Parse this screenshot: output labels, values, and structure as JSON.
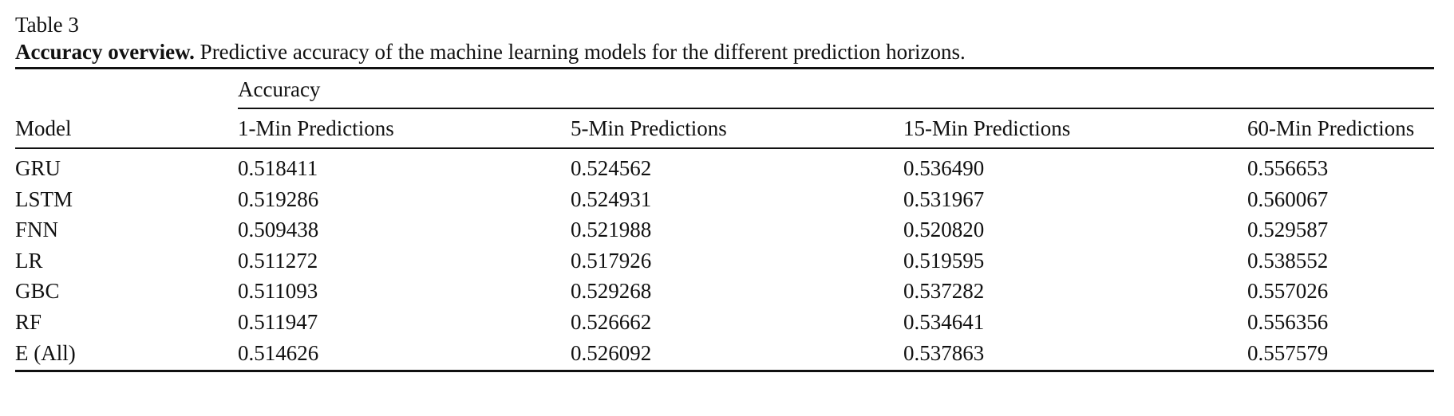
{
  "table": {
    "label": "Table 3",
    "caption_title": "Accuracy overview.",
    "caption_text": " Predictive accuracy of the machine learning models for the different prediction horizons.",
    "group_header": "Accuracy",
    "columns": [
      "Model",
      "1-Min Predictions",
      "5-Min Predictions",
      "15-Min Predictions",
      "60-Min Predictions"
    ],
    "rows": [
      [
        "GRU",
        "0.518411",
        "0.524562",
        "0.536490",
        "0.556653"
      ],
      [
        "LSTM",
        "0.519286",
        "0.524931",
        "0.531967",
        "0.560067"
      ],
      [
        "FNN",
        "0.509438",
        "0.521988",
        "0.520820",
        "0.529587"
      ],
      [
        "LR",
        "0.511272",
        "0.517926",
        "0.519595",
        "0.538552"
      ],
      [
        "GBC",
        "0.511093",
        "0.529268",
        "0.537282",
        "0.557026"
      ],
      [
        "RF",
        "0.511947",
        "0.526662",
        "0.534641",
        "0.556356"
      ],
      [
        "E (All)",
        "0.514626",
        "0.526092",
        "0.537863",
        "0.557579"
      ]
    ]
  }
}
